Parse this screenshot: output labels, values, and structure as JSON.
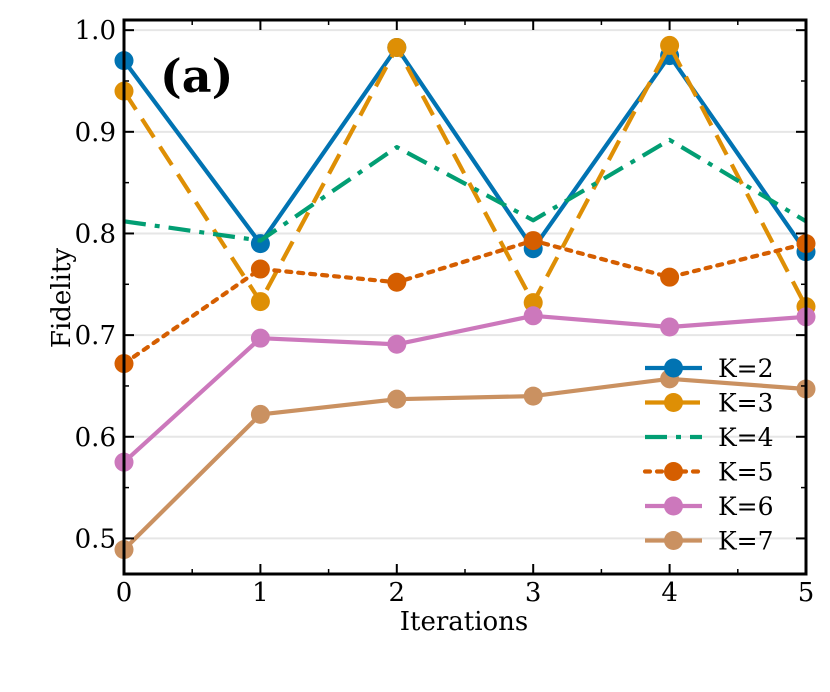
{
  "chart_data": {
    "type": "line",
    "panel_label": "(a)",
    "xlabel": "Iterations",
    "ylabel": "Fidelity",
    "xlim": [
      0,
      5
    ],
    "ylim": [
      0.465,
      1.01
    ],
    "x": [
      0,
      1,
      2,
      3,
      4,
      5
    ],
    "x_tick_labels": [
      "0",
      "1",
      "2",
      "3",
      "4",
      "5"
    ],
    "y_ticks": [
      0.5,
      0.6,
      0.7,
      0.8,
      0.9,
      1.0
    ],
    "y_tick_labels": [
      "0.5",
      "0.6",
      "0.7",
      "0.8",
      "0.9",
      "1.0"
    ],
    "grid": "horizontal",
    "legend_position": "lower-right",
    "series": [
      {
        "name": "K=2",
        "color": "#0173b2",
        "linestyle": "solid",
        "marker": true,
        "values": [
          0.97,
          0.79,
          0.983,
          0.785,
          0.975,
          0.782
        ]
      },
      {
        "name": "K=3",
        "color": "#de8f05",
        "linestyle": "dashed",
        "marker": true,
        "values": [
          0.94,
          0.733,
          0.983,
          0.732,
          0.985,
          0.728
        ]
      },
      {
        "name": "K=4",
        "color": "#029e73",
        "linestyle": "dashdot",
        "marker": false,
        "values": [
          0.812,
          0.793,
          0.885,
          0.813,
          0.892,
          0.812
        ]
      },
      {
        "name": "K=5",
        "color": "#d55e00",
        "linestyle": "dotted",
        "marker": true,
        "values": [
          0.672,
          0.765,
          0.752,
          0.793,
          0.757,
          0.79
        ]
      },
      {
        "name": "K=6",
        "color": "#cc78bc",
        "linestyle": "solid",
        "marker": true,
        "values": [
          0.575,
          0.697,
          0.691,
          0.719,
          0.708,
          0.718
        ]
      },
      {
        "name": "K=7",
        "color": "#ca9161",
        "linestyle": "solid",
        "marker": true,
        "values": [
          0.489,
          0.622,
          0.637,
          0.64,
          0.657,
          0.647
        ]
      }
    ]
  }
}
